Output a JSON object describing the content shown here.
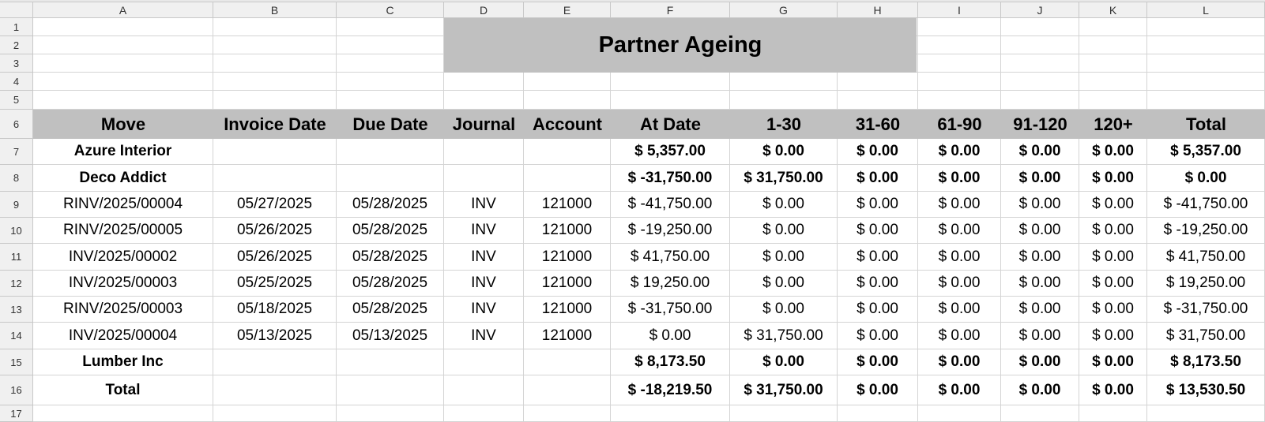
{
  "title": "Partner Ageing",
  "columns": [
    "A",
    "B",
    "C",
    "D",
    "E",
    "F",
    "G",
    "H",
    "I",
    "J",
    "K",
    "L"
  ],
  "row_numbers": [
    "1",
    "2",
    "3",
    "4",
    "5",
    "6",
    "7",
    "8",
    "9",
    "10",
    "11",
    "12",
    "13",
    "14",
    "15",
    "16",
    "17"
  ],
  "headers": [
    "Move",
    "Invoice Date",
    "Due Date",
    "Journal",
    "Account",
    "At Date",
    "1-30",
    "31-60",
    "61-90",
    "91-120",
    "120+",
    "Total"
  ],
  "rows": [
    {
      "bold": true,
      "cells": [
        "Azure Interior",
        "",
        "",
        "",
        "",
        "$ 5,357.00",
        "$ 0.00",
        "$ 0.00",
        "$ 0.00",
        "$ 0.00",
        "$ 0.00",
        "$ 5,357.00"
      ]
    },
    {
      "bold": true,
      "cells": [
        "Deco Addict",
        "",
        "",
        "",
        "",
        "$ -31,750.00",
        "$ 31,750.00",
        "$ 0.00",
        "$ 0.00",
        "$ 0.00",
        "$ 0.00",
        "$ 0.00"
      ]
    },
    {
      "bold": false,
      "cells": [
        "RINV/2025/00004",
        "05/27/2025",
        "05/28/2025",
        "INV",
        "121000",
        "$ -41,750.00",
        "$ 0.00",
        "$ 0.00",
        "$ 0.00",
        "$ 0.00",
        "$ 0.00",
        "$ -41,750.00"
      ]
    },
    {
      "bold": false,
      "cells": [
        "RINV/2025/00005",
        "05/26/2025",
        "05/28/2025",
        "INV",
        "121000",
        "$ -19,250.00",
        "$ 0.00",
        "$ 0.00",
        "$ 0.00",
        "$ 0.00",
        "$ 0.00",
        "$ -19,250.00"
      ]
    },
    {
      "bold": false,
      "cells": [
        "INV/2025/00002",
        "05/26/2025",
        "05/28/2025",
        "INV",
        "121000",
        "$ 41,750.00",
        "$ 0.00",
        "$ 0.00",
        "$ 0.00",
        "$ 0.00",
        "$ 0.00",
        "$ 41,750.00"
      ]
    },
    {
      "bold": false,
      "cells": [
        "INV/2025/00003",
        "05/25/2025",
        "05/28/2025",
        "INV",
        "121000",
        "$ 19,250.00",
        "$ 0.00",
        "$ 0.00",
        "$ 0.00",
        "$ 0.00",
        "$ 0.00",
        "$ 19,250.00"
      ]
    },
    {
      "bold": false,
      "cells": [
        "RINV/2025/00003",
        "05/18/2025",
        "05/28/2025",
        "INV",
        "121000",
        "$ -31,750.00",
        "$ 0.00",
        "$ 0.00",
        "$ 0.00",
        "$ 0.00",
        "$ 0.00",
        "$ -31,750.00"
      ]
    },
    {
      "bold": false,
      "cells": [
        "INV/2025/00004",
        "05/13/2025",
        "05/13/2025",
        "INV",
        "121000",
        "$ 0.00",
        "$ 31,750.00",
        "$ 0.00",
        "$ 0.00",
        "$ 0.00",
        "$ 0.00",
        "$ 31,750.00"
      ]
    },
    {
      "bold": true,
      "cells": [
        "Lumber Inc",
        "",
        "",
        "",
        "",
        "$ 8,173.50",
        "$ 0.00",
        "$ 0.00",
        "$ 0.00",
        "$ 0.00",
        "$ 0.00",
        "$ 8,173.50"
      ]
    },
    {
      "bold": true,
      "cells": [
        "Total",
        "",
        "",
        "",
        "",
        "$ -18,219.50",
        "$ 31,750.00",
        "$ 0.00",
        "$ 0.00",
        "$ 0.00",
        "$ 0.00",
        "$ 13,530.50"
      ]
    }
  ]
}
